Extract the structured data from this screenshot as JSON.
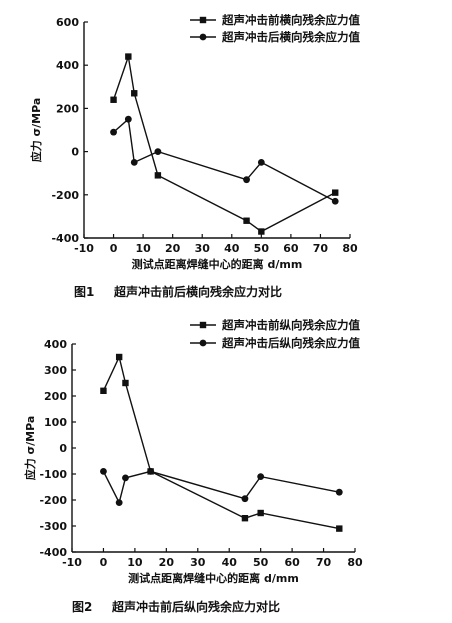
{
  "chart_data": [
    {
      "type": "line",
      "figure_label": "图1",
      "title": "超声冲击前后横向残余应力对比",
      "xlabel": "测试点距离焊缝中心的距离 d/mm",
      "ylabel": "应力 σ/MPa",
      "xlim": [
        -10,
        80
      ],
      "ylim": [
        -400,
        600
      ],
      "xticks": [
        -10,
        0,
        10,
        20,
        30,
        40,
        50,
        60,
        70,
        80
      ],
      "yticks": [
        -400,
        -200,
        0,
        200,
        400,
        600
      ],
      "legend_position": "top-right",
      "series": [
        {
          "name": "超声冲击前横向残余应力值",
          "marker": "square",
          "x": [
            0,
            5,
            7,
            15,
            45,
            50,
            75
          ],
          "y": [
            240,
            440,
            270,
            -110,
            -320,
            -370,
            -190
          ]
        },
        {
          "name": "超声冲击后横向残余应力值",
          "marker": "circle",
          "x": [
            0,
            5,
            7,
            15,
            45,
            50,
            75
          ],
          "y": [
            90,
            150,
            -50,
            0,
            -130,
            -50,
            -230
          ]
        }
      ]
    },
    {
      "type": "line",
      "figure_label": "图2",
      "title": "超声冲击前后纵向残余应力对比",
      "xlabel": "测试点距离焊缝中心的距离 d/mm",
      "ylabel": "应力 σ/MPa",
      "xlim": [
        -10,
        80
      ],
      "ylim": [
        -400,
        400
      ],
      "xticks": [
        -10,
        0,
        10,
        20,
        30,
        40,
        50,
        60,
        70,
        80
      ],
      "yticks": [
        -400,
        -300,
        -200,
        -100,
        0,
        100,
        200,
        300,
        400
      ],
      "legend_position": "top-right",
      "series": [
        {
          "name": "超声冲击前纵向残余应力值",
          "marker": "square",
          "x": [
            0,
            5,
            7,
            15,
            45,
            50,
            75
          ],
          "y": [
            220,
            350,
            250,
            -90,
            -270,
            -250,
            -310
          ]
        },
        {
          "name": "超声冲击后纵向残余应力值",
          "marker": "circle",
          "x": [
            0,
            5,
            7,
            15,
            45,
            50,
            75
          ],
          "y": [
            -90,
            -210,
            -115,
            -90,
            -195,
            -110,
            -170
          ]
        }
      ]
    }
  ]
}
